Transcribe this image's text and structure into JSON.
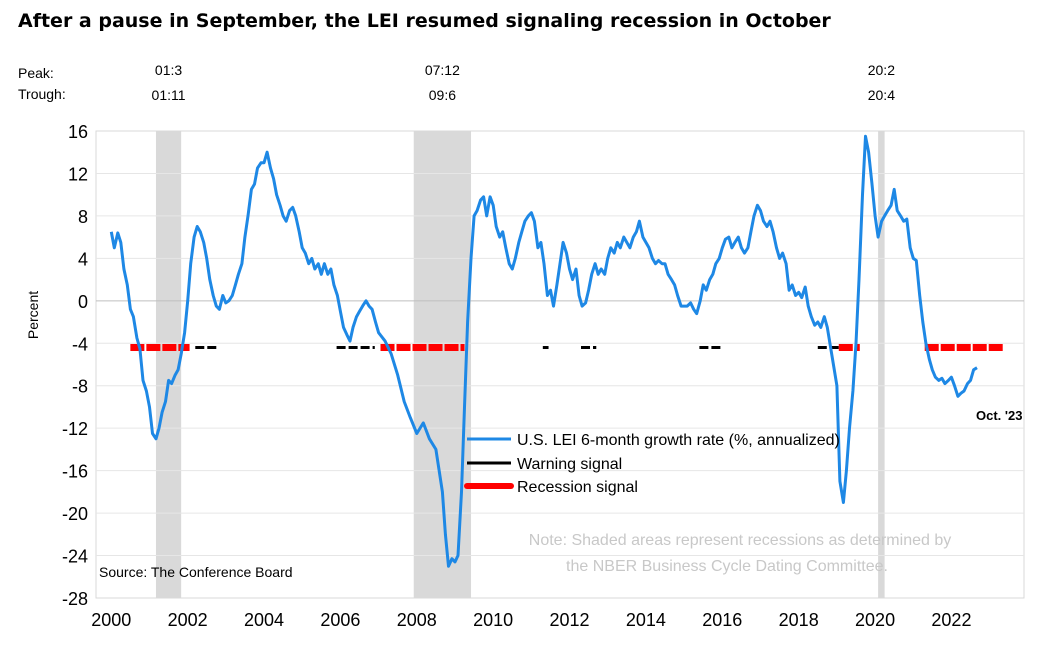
{
  "chart_data": {
    "type": "line",
    "title": "After a pause in September, the LEI resumed signaling recession in October",
    "ylabel": "Percent",
    "ylim": [
      -28,
      16
    ],
    "xlim": [
      1999.6,
      2023.9
    ],
    "yticks": [
      16,
      12,
      8,
      4,
      0,
      -4,
      -8,
      -12,
      -16,
      -20,
      -24,
      -28
    ],
    "xticks": [
      2000,
      2002,
      2004,
      2006,
      2008,
      2010,
      2012,
      2014,
      2016,
      2018,
      2020,
      2022
    ],
    "peak_label": "Peak:",
    "trough_label": "Trough:",
    "recessions": [
      {
        "start": 2001.17,
        "end": 2001.83,
        "peak": "01:3",
        "trough": "01:11"
      },
      {
        "start": 2007.92,
        "end": 2009.42,
        "peak": "07:12",
        "trough": "09:6"
      },
      {
        "start": 2020.08,
        "end": 2020.25,
        "peak": "20:2",
        "trough": "20:4"
      }
    ],
    "series": [
      {
        "name": "U.S. LEI 6-month growth rate (%, annualized)",
        "color": "#1e88e5",
        "points": [
          [
            2000.0,
            6.5
          ],
          [
            2000.08,
            5.0
          ],
          [
            2000.17,
            6.4
          ],
          [
            2000.25,
            5.5
          ],
          [
            2000.33,
            3.0
          ],
          [
            2000.42,
            1.5
          ],
          [
            2000.5,
            -0.8
          ],
          [
            2000.58,
            -1.5
          ],
          [
            2000.67,
            -3.5
          ],
          [
            2000.75,
            -4.5
          ],
          [
            2000.83,
            -7.5
          ],
          [
            2000.92,
            -8.5
          ],
          [
            2001.0,
            -10.0
          ],
          [
            2001.08,
            -12.5
          ],
          [
            2001.17,
            -13.0
          ],
          [
            2001.25,
            -12.0
          ],
          [
            2001.33,
            -10.5
          ],
          [
            2001.42,
            -9.5
          ],
          [
            2001.5,
            -7.5
          ],
          [
            2001.58,
            -7.8
          ],
          [
            2001.67,
            -7.0
          ],
          [
            2001.75,
            -6.5
          ],
          [
            2001.83,
            -5.0
          ],
          [
            2001.92,
            -3.0
          ],
          [
            2002.0,
            0.0
          ],
          [
            2002.08,
            3.5
          ],
          [
            2002.17,
            6.0
          ],
          [
            2002.25,
            7.0
          ],
          [
            2002.33,
            6.5
          ],
          [
            2002.42,
            5.5
          ],
          [
            2002.5,
            4.0
          ],
          [
            2002.58,
            2.0
          ],
          [
            2002.67,
            0.5
          ],
          [
            2002.75,
            -0.5
          ],
          [
            2002.83,
            -0.8
          ],
          [
            2002.92,
            0.5
          ],
          [
            2003.0,
            -0.2
          ],
          [
            2003.08,
            0.0
          ],
          [
            2003.17,
            0.5
          ],
          [
            2003.25,
            1.5
          ],
          [
            2003.33,
            2.5
          ],
          [
            2003.42,
            3.5
          ],
          [
            2003.5,
            6.0
          ],
          [
            2003.58,
            8.0
          ],
          [
            2003.67,
            10.5
          ],
          [
            2003.75,
            11.0
          ],
          [
            2003.83,
            12.5
          ],
          [
            2003.92,
            13.0
          ],
          [
            2004.0,
            13.0
          ],
          [
            2004.08,
            14.0
          ],
          [
            2004.17,
            12.5
          ],
          [
            2004.25,
            11.5
          ],
          [
            2004.33,
            10.0
          ],
          [
            2004.42,
            9.0
          ],
          [
            2004.5,
            8.0
          ],
          [
            2004.58,
            7.5
          ],
          [
            2004.67,
            8.5
          ],
          [
            2004.75,
            8.8
          ],
          [
            2004.83,
            8.0
          ],
          [
            2004.92,
            6.5
          ],
          [
            2005.0,
            5.0
          ],
          [
            2005.08,
            4.5
          ],
          [
            2005.17,
            3.5
          ],
          [
            2005.25,
            4.0
          ],
          [
            2005.33,
            3.0
          ],
          [
            2005.42,
            3.5
          ],
          [
            2005.5,
            2.5
          ],
          [
            2005.58,
            3.5
          ],
          [
            2005.67,
            2.5
          ],
          [
            2005.75,
            3.0
          ],
          [
            2005.83,
            1.5
          ],
          [
            2005.92,
            0.5
          ],
          [
            2006.0,
            -1.0
          ],
          [
            2006.08,
            -2.5
          ],
          [
            2006.17,
            -3.2
          ],
          [
            2006.25,
            -3.8
          ],
          [
            2006.33,
            -2.5
          ],
          [
            2006.42,
            -1.5
          ],
          [
            2006.5,
            -1.0
          ],
          [
            2006.58,
            -0.5
          ],
          [
            2006.67,
            0.0
          ],
          [
            2006.75,
            -0.5
          ],
          [
            2006.83,
            -0.8
          ],
          [
            2006.92,
            -2.0
          ],
          [
            2007.0,
            -3.0
          ],
          [
            2007.17,
            -3.8
          ],
          [
            2007.33,
            -5.0
          ],
          [
            2007.5,
            -7.0
          ],
          [
            2007.67,
            -9.5
          ],
          [
            2007.83,
            -11.0
          ],
          [
            2008.0,
            -12.5
          ],
          [
            2008.17,
            -11.5
          ],
          [
            2008.33,
            -13.0
          ],
          [
            2008.5,
            -14.0
          ],
          [
            2008.67,
            -18.0
          ],
          [
            2008.75,
            -22.0
          ],
          [
            2008.83,
            -25.0
          ],
          [
            2008.92,
            -24.3
          ],
          [
            2009.0,
            -24.6
          ],
          [
            2009.08,
            -24.0
          ],
          [
            2009.17,
            -18.0
          ],
          [
            2009.25,
            -10.0
          ],
          [
            2009.33,
            -2.0
          ],
          [
            2009.42,
            4.0
          ],
          [
            2009.5,
            8.0
          ],
          [
            2009.58,
            8.5
          ],
          [
            2009.67,
            9.5
          ],
          [
            2009.75,
            9.8
          ],
          [
            2009.83,
            8.0
          ],
          [
            2009.92,
            9.8
          ],
          [
            2010.0,
            9.0
          ],
          [
            2010.08,
            7.0
          ],
          [
            2010.17,
            6.0
          ],
          [
            2010.25,
            6.5
          ],
          [
            2010.33,
            5.0
          ],
          [
            2010.42,
            3.5
          ],
          [
            2010.5,
            3.0
          ],
          [
            2010.58,
            4.0
          ],
          [
            2010.67,
            5.5
          ],
          [
            2010.75,
            6.5
          ],
          [
            2010.83,
            7.5
          ],
          [
            2010.92,
            8.0
          ],
          [
            2011.0,
            8.3
          ],
          [
            2011.08,
            7.5
          ],
          [
            2011.17,
            5.0
          ],
          [
            2011.25,
            5.5
          ],
          [
            2011.33,
            3.5
          ],
          [
            2011.42,
            0.5
          ],
          [
            2011.5,
            1.0
          ],
          [
            2011.58,
            -0.5
          ],
          [
            2011.67,
            1.5
          ],
          [
            2011.75,
            3.5
          ],
          [
            2011.83,
            5.5
          ],
          [
            2011.92,
            4.5
          ],
          [
            2012.0,
            3.0
          ],
          [
            2012.08,
            2.0
          ],
          [
            2012.17,
            3.0
          ],
          [
            2012.25,
            0.5
          ],
          [
            2012.33,
            -0.5
          ],
          [
            2012.42,
            -0.2
          ],
          [
            2012.5,
            1.0
          ],
          [
            2012.58,
            2.5
          ],
          [
            2012.67,
            3.5
          ],
          [
            2012.75,
            2.5
          ],
          [
            2012.83,
            3.0
          ],
          [
            2012.92,
            2.5
          ],
          [
            2013.0,
            4.0
          ],
          [
            2013.08,
            5.0
          ],
          [
            2013.17,
            4.5
          ],
          [
            2013.25,
            5.5
          ],
          [
            2013.33,
            5.0
          ],
          [
            2013.42,
            6.0
          ],
          [
            2013.5,
            5.5
          ],
          [
            2013.58,
            5.0
          ],
          [
            2013.67,
            6.0
          ],
          [
            2013.75,
            6.5
          ],
          [
            2013.83,
            7.5
          ],
          [
            2013.92,
            6.0
          ],
          [
            2014.0,
            5.5
          ],
          [
            2014.08,
            5.0
          ],
          [
            2014.17,
            4.0
          ],
          [
            2014.25,
            3.5
          ],
          [
            2014.33,
            3.8
          ],
          [
            2014.42,
            3.5
          ],
          [
            2014.5,
            3.5
          ],
          [
            2014.58,
            2.5
          ],
          [
            2014.67,
            2.0
          ],
          [
            2014.75,
            1.5
          ],
          [
            2014.83,
            0.5
          ],
          [
            2014.92,
            -0.5
          ],
          [
            2015.0,
            -0.5
          ],
          [
            2015.08,
            -0.5
          ],
          [
            2015.17,
            -0.2
          ],
          [
            2015.25,
            -0.8
          ],
          [
            2015.33,
            -1.2
          ],
          [
            2015.42,
            0.0
          ],
          [
            2015.5,
            1.5
          ],
          [
            2015.58,
            1.0
          ],
          [
            2015.67,
            2.0
          ],
          [
            2015.75,
            2.5
          ],
          [
            2015.83,
            3.5
          ],
          [
            2015.92,
            4.0
          ],
          [
            2016.0,
            5.0
          ],
          [
            2016.08,
            5.8
          ],
          [
            2016.17,
            6.0
          ],
          [
            2016.25,
            5.0
          ],
          [
            2016.33,
            5.5
          ],
          [
            2016.42,
            6.0
          ],
          [
            2016.5,
            5.0
          ],
          [
            2016.58,
            4.5
          ],
          [
            2016.67,
            5.0
          ],
          [
            2016.75,
            6.5
          ],
          [
            2016.83,
            8.0
          ],
          [
            2016.92,
            9.0
          ],
          [
            2017.0,
            8.5
          ],
          [
            2017.08,
            7.5
          ],
          [
            2017.17,
            7.0
          ],
          [
            2017.25,
            7.5
          ],
          [
            2017.33,
            6.5
          ],
          [
            2017.42,
            5.0
          ],
          [
            2017.5,
            4.0
          ],
          [
            2017.58,
            4.5
          ],
          [
            2017.67,
            3.5
          ],
          [
            2017.75,
            1.0
          ],
          [
            2017.83,
            1.5
          ],
          [
            2017.92,
            0.5
          ],
          [
            2018.0,
            0.8
          ],
          [
            2018.08,
            0.3
          ],
          [
            2018.17,
            1.3
          ],
          [
            2018.25,
            -0.5
          ],
          [
            2018.33,
            -1.5
          ],
          [
            2018.42,
            -2.3
          ],
          [
            2018.5,
            -2.0
          ],
          [
            2018.58,
            -2.5
          ],
          [
            2018.67,
            -1.5
          ],
          [
            2018.75,
            -2.5
          ],
          [
            2019.0,
            -8.0
          ],
          [
            2019.08,
            -17.0
          ],
          [
            2019.17,
            -19.0
          ],
          [
            2019.25,
            -16.0
          ],
          [
            2019.33,
            -12.0
          ],
          [
            2019.42,
            -8.5
          ],
          [
            2019.5,
            -4.0
          ],
          [
            2019.58,
            2.0
          ],
          [
            2019.67,
            10.0
          ],
          [
            2019.75,
            15.5
          ],
          [
            2019.83,
            14.0
          ],
          [
            2019.92,
            11.0
          ],
          [
            2020.0,
            8.0
          ],
          [
            2020.08,
            6.0
          ],
          [
            2020.17,
            7.5
          ],
          [
            2020.25,
            8.0
          ],
          [
            2020.33,
            8.5
          ],
          [
            2020.42,
            9.0
          ],
          [
            2020.5,
            10.5
          ],
          [
            2020.58,
            8.5
          ],
          [
            2020.67,
            8.0
          ],
          [
            2020.75,
            7.5
          ],
          [
            2020.83,
            7.7
          ],
          [
            2020.92,
            5.0
          ],
          [
            2021.0,
            4.0
          ],
          [
            2021.08,
            3.8
          ],
          [
            2021.17,
            0.5
          ],
          [
            2021.25,
            -2.0
          ],
          [
            2021.33,
            -4.0
          ],
          [
            2021.42,
            -5.5
          ],
          [
            2021.5,
            -6.5
          ],
          [
            2021.58,
            -7.2
          ],
          [
            2021.67,
            -7.5
          ],
          [
            2021.75,
            -7.3
          ],
          [
            2021.83,
            -7.8
          ],
          [
            2021.92,
            -7.5
          ],
          [
            2022.0,
            -7.2
          ],
          [
            2022.08,
            -8.0
          ],
          [
            2022.17,
            -9.0
          ],
          [
            2022.25,
            -8.7
          ],
          [
            2022.33,
            -8.5
          ],
          [
            2022.42,
            -7.8
          ],
          [
            2022.5,
            -7.5
          ],
          [
            2022.58,
            -6.5
          ],
          [
            2022.67,
            -6.3
          ]
        ]
      },
      {
        "name": "Warning signal",
        "color": "#000000",
        "y": -4.4,
        "segments": [
          [
            2002.2,
            2002.75
          ],
          [
            2005.9,
            2006.9
          ],
          [
            2011.3,
            2011.45
          ],
          [
            2012.3,
            2012.7
          ],
          [
            2015.4,
            2016.0
          ],
          [
            2018.5,
            2019.05
          ]
        ]
      },
      {
        "name": "Recession signal",
        "color": "#ff0000",
        "y": -4.4,
        "segments": [
          [
            2000.5,
            2002.05
          ],
          [
            2007.05,
            2009.25
          ],
          [
            2019.05,
            2019.6
          ],
          [
            2021.3,
            2023.35
          ]
        ]
      }
    ],
    "annotations": {
      "last_point": "Oct. '23",
      "note_line1": "Note: Shaded areas represent recessions as determined by",
      "note_line2": "the NBER Business Cycle Dating Committee.",
      "source": "Source: The Conference Board"
    },
    "legend_position": "center-right",
    "grid": "horizontal"
  }
}
